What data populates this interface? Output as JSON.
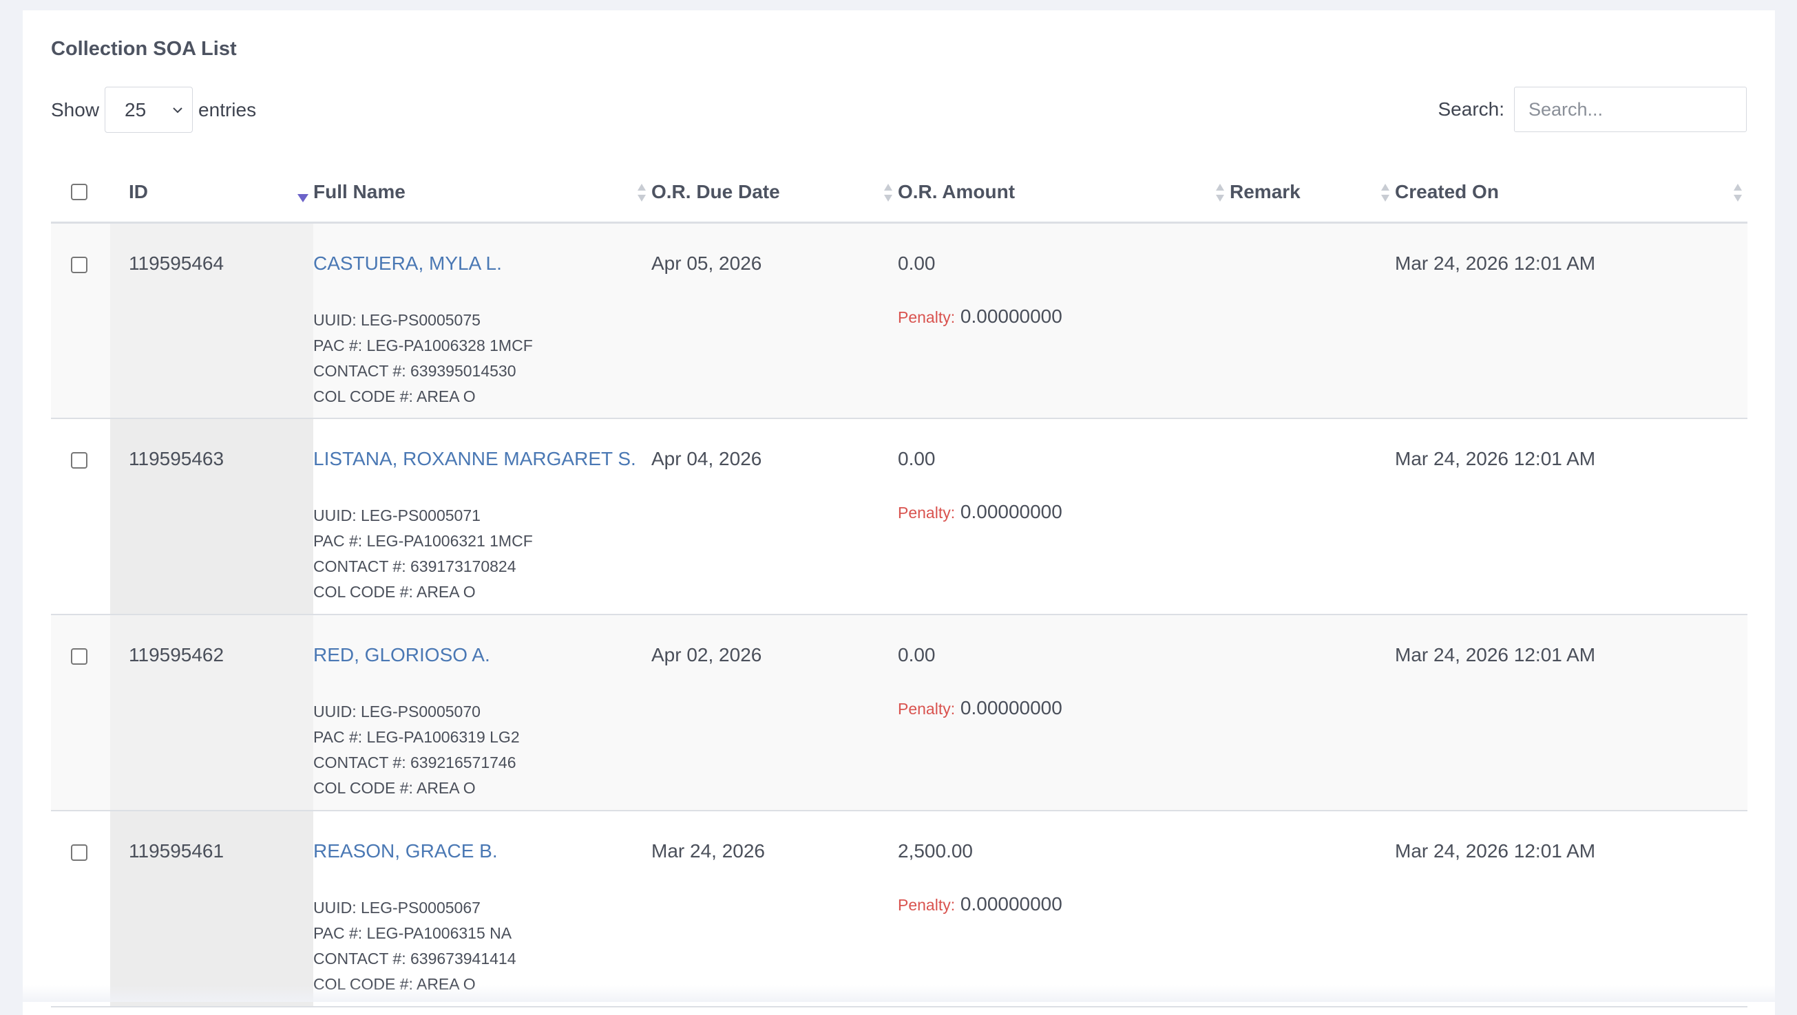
{
  "card": {
    "title": "Collection SOA List"
  },
  "length": {
    "show_label": "Show",
    "value": "25",
    "entries_label": "entries"
  },
  "search": {
    "label": "Search:",
    "placeholder": "Search..."
  },
  "columns": {
    "id": "ID",
    "full_name": "Full Name",
    "due_date": "O.R. Due Date",
    "amount": "O.R. Amount",
    "remark": "Remark",
    "created_on": "Created On"
  },
  "penalty_label": "Penalty:",
  "rows": [
    {
      "id": "119595464",
      "name": "CASTUERA, MYLA L.",
      "uuid": "UUID: LEG-PS0005075",
      "pac": "PAC #: LEG-PA1006328 1MCF",
      "contact": "CONTACT #: 639395014530",
      "col_code": "COL CODE #: AREA O",
      "due_date": "Apr 05, 2026",
      "amount": "0.00",
      "penalty": "0.00000000",
      "remark": "",
      "created_on": "Mar 24, 2026 12:01 AM"
    },
    {
      "id": "119595463",
      "name": "LISTANA, ROXANNE MARGARET S.",
      "uuid": "UUID: LEG-PS0005071",
      "pac": "PAC #: LEG-PA1006321 1MCF",
      "contact": "CONTACT #: 639173170824",
      "col_code": "COL CODE #: AREA O",
      "due_date": "Apr 04, 2026",
      "amount": "0.00",
      "penalty": "0.00000000",
      "remark": "",
      "created_on": "Mar 24, 2026 12:01 AM"
    },
    {
      "id": "119595462",
      "name": "RED, GLORIOSO A.",
      "uuid": "UUID: LEG-PS0005070",
      "pac": "PAC #: LEG-PA1006319 LG2",
      "contact": "CONTACT #: 639216571746",
      "col_code": "COL CODE #: AREA O",
      "due_date": "Apr 02, 2026",
      "amount": "0.00",
      "penalty": "0.00000000",
      "remark": "",
      "created_on": "Mar 24, 2026 12:01 AM"
    },
    {
      "id": "119595461",
      "name": "REASON, GRACE B.",
      "uuid": "UUID: LEG-PS0005067",
      "pac": "PAC #: LEG-PA1006315 NA",
      "contact": "CONTACT #: 639673941414",
      "col_code": "COL CODE #: AREA O",
      "due_date": "Mar 24, 2026",
      "amount": "2,500.00",
      "penalty": "0.00000000",
      "remark": "",
      "created_on": "Mar 24, 2026 12:01 AM"
    }
  ],
  "colors": {
    "link": "#4a78b4",
    "penalty": "#d9534f",
    "sort_active": "#6c63c9"
  },
  "icons": {
    "select": "chevron-down-icon",
    "sort": "sort-both-icon",
    "sort_active": "sort-desc-icon"
  }
}
